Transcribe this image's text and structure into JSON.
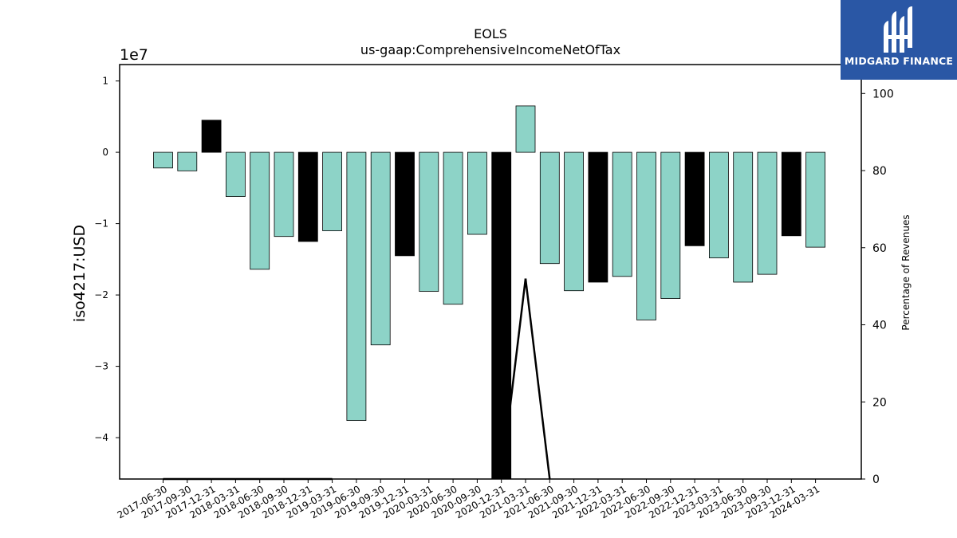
{
  "brand": {
    "name": "MIDGARD FINANCE",
    "color": "#2a57a5"
  },
  "chart_data": {
    "type": "bar",
    "title": "EOLS",
    "subtitle": "us-gaap:ComprehensiveIncomeNetOfTax",
    "ylabel": "iso4217:USD",
    "y_offset_label": "1e7",
    "y2label": "Percentage of Revenues",
    "ylim": [
      -4.58,
      1.23
    ],
    "y_ticks": [
      1,
      0,
      -1,
      -2,
      -3,
      -4
    ],
    "y2lim": [
      0,
      107.5
    ],
    "y2_ticks": [
      0,
      20,
      40,
      60,
      80,
      100
    ],
    "categories": [
      "2017-06-30",
      "2017-09-30",
      "2017-12-31",
      "2018-03-31",
      "2018-06-30",
      "2018-09-30",
      "2018-12-31",
      "2019-03-31",
      "2019-06-30",
      "2019-09-30",
      "2019-12-31",
      "2020-03-31",
      "2020-06-30",
      "2020-09-30",
      "2020-12-31",
      "2021-03-31",
      "2021-06-30",
      "2021-09-30",
      "2021-12-31",
      "2022-03-31",
      "2022-06-30",
      "2022-09-30",
      "2022-12-31",
      "2023-03-31",
      "2023-06-30",
      "2023-09-30",
      "2023-12-31",
      "2024-03-31"
    ],
    "values": [
      -0.22,
      -0.26,
      0.45,
      -0.62,
      -1.64,
      -1.18,
      -1.25,
      -1.1,
      -3.76,
      -2.7,
      -1.45,
      -1.95,
      -2.13,
      -1.15,
      -4.58,
      0.65,
      -1.56,
      -1.94,
      -1.82,
      -1.74,
      -2.35,
      -2.05,
      -1.31,
      -1.48,
      -1.82,
      -1.71,
      -1.17,
      -1.33
    ],
    "bar_colors": [
      "#8dd3c7",
      "#8dd3c7",
      "#000000",
      "#8dd3c7",
      "#8dd3c7",
      "#8dd3c7",
      "#000000",
      "#8dd3c7",
      "#8dd3c7",
      "#8dd3c7",
      "#000000",
      "#8dd3c7",
      "#8dd3c7",
      "#8dd3c7",
      "#000000",
      "#8dd3c7",
      "#8dd3c7",
      "#8dd3c7",
      "#000000",
      "#8dd3c7",
      "#8dd3c7",
      "#8dd3c7",
      "#000000",
      "#8dd3c7",
      "#8dd3c7",
      "#8dd3c7",
      "#000000",
      "#8dd3c7"
    ],
    "line_series": {
      "name": "Percentage of Revenues",
      "color": "#000000",
      "points": [
        {
          "x": "2017-06-30",
          "y": 0
        },
        {
          "x": "2017-09-30",
          "y": 0
        },
        {
          "x": "2017-12-31",
          "y": 0
        },
        {
          "x": "2018-03-31",
          "y": 0
        },
        {
          "x": "2018-06-30",
          "y": 0
        },
        {
          "x": "2018-09-30",
          "y": 0
        },
        {
          "x": "2018-12-31",
          "y": 0
        },
        {
          "x": "2019-03-31",
          "y": 0
        },
        {
          "x": "2020-12-31",
          "y": 0
        },
        {
          "x": "2021-03-31",
          "y": 52
        },
        {
          "x": "2021-06-30",
          "y": 0
        }
      ]
    },
    "grid": false,
    "legend": "none"
  }
}
